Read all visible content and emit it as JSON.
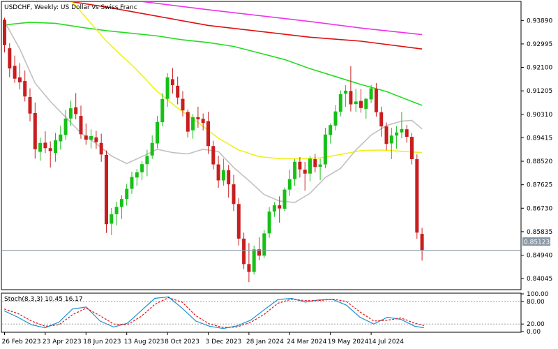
{
  "header": {
    "title": "USDCHF, Weekly:  US Dollar vs Swiss Franc"
  },
  "colors": {
    "bull": "#17c017",
    "bear": "#c81e1e",
    "ma_gray": "#c0c0c0",
    "ma_yellow": "#f0f020",
    "ma_green": "#22dd22",
    "ma_red": "#dd1010",
    "ma_magenta": "#ee33ee",
    "stoch_main": "#1e90d0",
    "stoch_signal": "#dd1111",
    "price_line": "#8c9aa6",
    "axis": "#000000"
  },
  "stochastic": {
    "label": "Stoch(8,3,3)",
    "main_value": "10.45",
    "signal_value": "16.17"
  },
  "current_price_label": "0.85123",
  "chart_data": [
    {
      "type": "candlestick",
      "title": "USDCHF, Weekly:  US Dollar vs Swiss Franc",
      "ylim": [
        0.8365,
        0.9459
      ],
      "y_ticks": [
        "0.93890",
        "0.92995",
        "0.92100",
        "0.91205",
        "0.90310",
        "0.89415",
        "0.88520",
        "0.87625",
        "0.86730",
        "0.85835",
        "0.84940",
        "0.84045"
      ],
      "y_tick_values": [
        0.9389,
        0.92995,
        0.921,
        0.91205,
        0.9031,
        0.89415,
        0.8852,
        0.87625,
        0.8673,
        0.85835,
        0.8494,
        0.84045
      ],
      "x_ticks": [
        "26 Feb 2023",
        "23 Apr 2023",
        "18 Jun 2023",
        "13 Aug 2023",
        "8 Oct 2023",
        "3 Dec 2023",
        "28 Jan 2024",
        "24 Mar 2024",
        "19 May 2024",
        "14 Jul 2024"
      ],
      "x_tick_index": [
        0,
        8,
        16,
        24,
        32,
        40,
        48,
        56,
        64,
        72
      ],
      "current_price": 0.85123,
      "candles": [
        [
          0.9392,
          0.9399,
          0.9267,
          0.9295
        ],
        [
          0.9283,
          0.9302,
          0.9172,
          0.9206
        ],
        [
          0.9216,
          0.9255,
          0.9151,
          0.9167
        ],
        [
          0.9172,
          0.9226,
          0.9126,
          0.9153
        ],
        [
          0.9158,
          0.9198,
          0.908,
          0.9099
        ],
        [
          0.9097,
          0.913,
          0.9004,
          0.9034
        ],
        [
          0.9036,
          0.9076,
          0.8862,
          0.8898
        ],
        [
          0.8888,
          0.8943,
          0.8854,
          0.8922
        ],
        [
          0.8923,
          0.8966,
          0.8884,
          0.8902
        ],
        [
          0.8902,
          0.8928,
          0.8828,
          0.8891
        ],
        [
          0.8884,
          0.896,
          0.885,
          0.8932
        ],
        [
          0.8928,
          0.8988,
          0.8896,
          0.8954
        ],
        [
          0.8952,
          0.9048,
          0.8933,
          0.9015
        ],
        [
          0.9015,
          0.9083,
          0.8987,
          0.9054
        ],
        [
          0.9058,
          0.9112,
          0.9012,
          0.9032
        ],
        [
          0.9025,
          0.9064,
          0.8938,
          0.8955
        ],
        [
          0.895,
          0.8996,
          0.8915,
          0.8934
        ],
        [
          0.8934,
          0.8974,
          0.8901,
          0.8948
        ],
        [
          0.8943,
          0.8968,
          0.89,
          0.8925
        ],
        [
          0.8922,
          0.8957,
          0.885,
          0.8878
        ],
        [
          0.8876,
          0.8893,
          0.8579,
          0.8612
        ],
        [
          0.8614,
          0.8674,
          0.857,
          0.865
        ],
        [
          0.865,
          0.8698,
          0.8607,
          0.8678
        ],
        [
          0.8678,
          0.8722,
          0.8632,
          0.8708
        ],
        [
          0.8708,
          0.8766,
          0.8683,
          0.8747
        ],
        [
          0.8747,
          0.8812,
          0.8728,
          0.8792
        ],
        [
          0.879,
          0.8823,
          0.8758,
          0.881
        ],
        [
          0.881,
          0.8852,
          0.878,
          0.8841
        ],
        [
          0.8841,
          0.8896,
          0.8795,
          0.8872
        ],
        [
          0.8874,
          0.8951,
          0.8861,
          0.8922
        ],
        [
          0.892,
          0.9025,
          0.8901,
          0.9002
        ],
        [
          0.9001,
          0.9112,
          0.8985,
          0.9089
        ],
        [
          0.909,
          0.9188,
          0.906,
          0.9172
        ],
        [
          0.9165,
          0.9208,
          0.911,
          0.9142
        ],
        [
          0.914,
          0.9175,
          0.9069,
          0.9095
        ],
        [
          0.909,
          0.912,
          0.9023,
          0.9046
        ],
        [
          0.904,
          0.905,
          0.8943,
          0.8965
        ],
        [
          0.897,
          0.9031,
          0.8938,
          0.902
        ],
        [
          0.902,
          0.906,
          0.898,
          0.9012
        ],
        [
          0.9014,
          0.9034,
          0.897,
          0.8998
        ],
        [
          0.9005,
          0.9041,
          0.888,
          0.891
        ],
        [
          0.891,
          0.893,
          0.8821,
          0.884
        ],
        [
          0.884,
          0.8873,
          0.8751,
          0.8779
        ],
        [
          0.8779,
          0.8862,
          0.8759,
          0.8818
        ],
        [
          0.8818,
          0.8838,
          0.8713,
          0.8764
        ],
        [
          0.8764,
          0.88,
          0.8662,
          0.8689
        ],
        [
          0.8689,
          0.8711,
          0.8531,
          0.8557
        ],
        [
          0.8557,
          0.858,
          0.8441,
          0.846
        ],
        [
          0.846,
          0.854,
          0.8391,
          0.843
        ],
        [
          0.843,
          0.8531,
          0.842,
          0.8516
        ],
        [
          0.8516,
          0.8562,
          0.8474,
          0.8492
        ],
        [
          0.8492,
          0.859,
          0.8483,
          0.8577
        ],
        [
          0.8577,
          0.8677,
          0.856,
          0.866
        ],
        [
          0.866,
          0.8696,
          0.864,
          0.8684
        ],
        [
          0.8684,
          0.8718,
          0.8618,
          0.8672
        ],
        [
          0.8671,
          0.8752,
          0.8662,
          0.8744
        ],
        [
          0.8744,
          0.882,
          0.872,
          0.8784
        ],
        [
          0.8784,
          0.886,
          0.8758,
          0.885
        ],
        [
          0.885,
          0.8868,
          0.879,
          0.8821
        ],
        [
          0.882,
          0.885,
          0.874,
          0.8805
        ],
        [
          0.8805,
          0.8872,
          0.8775,
          0.8862
        ],
        [
          0.886,
          0.888,
          0.881,
          0.883
        ],
        [
          0.8831,
          0.8862,
          0.878,
          0.884
        ],
        [
          0.884,
          0.898,
          0.8825,
          0.8954
        ],
        [
          0.8952,
          0.8996,
          0.892,
          0.899
        ],
        [
          0.8988,
          0.9066,
          0.897,
          0.9042
        ],
        [
          0.9041,
          0.9122,
          0.9023,
          0.9108
        ],
        [
          0.911,
          0.9142,
          0.906,
          0.9121
        ],
        [
          0.912,
          0.9215,
          0.9042,
          0.9069
        ],
        [
          0.907,
          0.9128,
          0.904,
          0.908
        ],
        [
          0.9082,
          0.9128,
          0.9037,
          0.9055
        ],
        [
          0.9052,
          0.9094,
          0.9014,
          0.909
        ],
        [
          0.9088,
          0.9143,
          0.9074,
          0.913
        ],
        [
          0.9128,
          0.915,
          0.9022,
          0.9039
        ],
        [
          0.9039,
          0.906,
          0.8946,
          0.8985
        ],
        [
          0.8985,
          0.9,
          0.8894,
          0.8918
        ],
        [
          0.892,
          0.898,
          0.886,
          0.895
        ],
        [
          0.895,
          0.8986,
          0.89,
          0.8962
        ],
        [
          0.8962,
          0.904,
          0.894,
          0.8975
        ],
        [
          0.8974,
          0.899,
          0.8923,
          0.8945
        ],
        [
          0.8945,
          0.896,
          0.884,
          0.886
        ],
        [
          0.886,
          0.8878,
          0.8556,
          0.858
        ],
        [
          0.8575,
          0.8598,
          0.8473,
          0.8512
        ]
      ],
      "ma_series": [
        {
          "color_key": "ma_magenta",
          "values": [
            [
              0,
              0.952
            ],
            [
              20,
              0.9478
            ],
            [
              40,
              0.943
            ],
            [
              60,
              0.9385
            ],
            [
              70,
              0.936
            ],
            [
              82,
              0.9335
            ]
          ]
        },
        {
          "color_key": "ma_red",
          "values": [
            [
              0,
              0.95
            ],
            [
              20,
              0.944
            ],
            [
              40,
              0.937
            ],
            [
              60,
              0.9325
            ],
            [
              70,
              0.931
            ],
            [
              82,
              0.928
            ]
          ]
        },
        {
          "color_key": "ma_green",
          "values": [
            [
              0,
              0.9372
            ],
            [
              5,
              0.9382
            ],
            [
              10,
              0.9378
            ],
            [
              15,
              0.9363
            ],
            [
              20,
              0.935
            ],
            [
              25,
              0.934
            ],
            [
              30,
              0.933
            ],
            [
              35,
              0.9315
            ],
            [
              40,
              0.9305
            ],
            [
              45,
              0.929
            ],
            [
              50,
              0.9265
            ],
            [
              55,
              0.924
            ],
            [
              60,
              0.9205
            ],
            [
              65,
              0.9175
            ],
            [
              70,
              0.9145
            ],
            [
              75,
              0.9118
            ],
            [
              82,
              0.9065
            ]
          ]
        },
        {
          "color_key": "ma_yellow",
          "values": [
            [
              0,
              0.964
            ],
            [
              8,
              0.956
            ],
            [
              14,
              0.9445
            ],
            [
              20,
              0.931
            ],
            [
              26,
              0.92
            ],
            [
              30,
              0.9118
            ],
            [
              34,
              0.9055
            ],
            [
              38,
              0.9
            ],
            [
              42,
              0.894
            ],
            [
              46,
              0.8895
            ],
            [
              50,
              0.887
            ],
            [
              54,
              0.8862
            ],
            [
              58,
              0.8862
            ],
            [
              62,
              0.8865
            ],
            [
              66,
              0.8878
            ],
            [
              70,
              0.8893
            ],
            [
              74,
              0.8895
            ],
            [
              78,
              0.889
            ],
            [
              82,
              0.8885
            ]
          ]
        },
        {
          "color_key": "ma_gray",
          "values": [
            [
              0,
              0.9385
            ],
            [
              3,
              0.928
            ],
            [
              6,
              0.915
            ],
            [
              9,
              0.908
            ],
            [
              12,
              0.902
            ],
            [
              15,
              0.896
            ],
            [
              18,
              0.892
            ],
            [
              21,
              0.8872
            ],
            [
              24,
              0.8843
            ],
            [
              27,
              0.887
            ],
            [
              30,
              0.8898
            ],
            [
              33,
              0.8885
            ],
            [
              36,
              0.888
            ],
            [
              39,
              0.8898
            ],
            [
              42,
              0.8889
            ],
            [
              45,
              0.8828
            ],
            [
              48,
              0.8778
            ],
            [
              51,
              0.8725
            ],
            [
              54,
              0.87
            ],
            [
              57,
              0.8695
            ],
            [
              60,
              0.873
            ],
            [
              63,
              0.879
            ],
            [
              66,
              0.8825
            ],
            [
              69,
              0.8895
            ],
            [
              72,
              0.8952
            ],
            [
              75,
              0.8988
            ],
            [
              78,
              0.9005
            ],
            [
              80,
              0.9008
            ],
            [
              82,
              0.8975
            ]
          ]
        }
      ]
    },
    {
      "type": "line",
      "title": "Stoch(8,3,3) 10.45 16.17",
      "ylim": [
        0,
        100
      ],
      "y_ticks": [
        "100.00",
        "80.00",
        "20.00",
        "0.00"
      ],
      "y_tick_values": [
        100,
        80,
        20,
        0
      ],
      "levels": [
        80,
        20
      ],
      "series": [
        {
          "color_key": "stoch_main",
          "values": [
            [
              0,
              55
            ],
            [
              3,
              38
            ],
            [
              6,
              18
            ],
            [
              9,
              10
            ],
            [
              12,
              25
            ],
            [
              15,
              60
            ],
            [
              18,
              65
            ],
            [
              21,
              28
            ],
            [
              24,
              12
            ],
            [
              27,
              22
            ],
            [
              30,
              55
            ],
            [
              33,
              88
            ],
            [
              36,
              92
            ],
            [
              39,
              62
            ],
            [
              42,
              28
            ],
            [
              45,
              14
            ],
            [
              48,
              8
            ],
            [
              51,
              15
            ],
            [
              54,
              30
            ],
            [
              57,
              58
            ],
            [
              60,
              85
            ],
            [
              63,
              88
            ],
            [
              66,
              78
            ],
            [
              69,
              84
            ],
            [
              72,
              85
            ],
            [
              75,
              70
            ],
            [
              78,
              38
            ],
            [
              81,
              20
            ],
            [
              84,
              38
            ],
            [
              87,
              32
            ],
            [
              90,
              14
            ],
            [
              92,
              10
            ]
          ]
        },
        {
          "color_key": "stoch_signal",
          "values": [
            [
              0,
              60
            ],
            [
              3,
              48
            ],
            [
              6,
              28
            ],
            [
              9,
              14
            ],
            [
              12,
              18
            ],
            [
              15,
              45
            ],
            [
              18,
              62
            ],
            [
              21,
              42
            ],
            [
              24,
              20
            ],
            [
              27,
              18
            ],
            [
              30,
              40
            ],
            [
              33,
              72
            ],
            [
              36,
              90
            ],
            [
              39,
              78
            ],
            [
              42,
              42
            ],
            [
              45,
              20
            ],
            [
              48,
              11
            ],
            [
              51,
              12
            ],
            [
              54,
              24
            ],
            [
              57,
              46
            ],
            [
              60,
              75
            ],
            [
              63,
              86
            ],
            [
              66,
              82
            ],
            [
              69,
              82
            ],
            [
              72,
              86
            ],
            [
              75,
              80
            ],
            [
              78,
              52
            ],
            [
              81,
              28
            ],
            [
              84,
              30
            ],
            [
              87,
              36
            ],
            [
              90,
              22
            ],
            [
              92,
              16
            ]
          ]
        }
      ]
    }
  ]
}
